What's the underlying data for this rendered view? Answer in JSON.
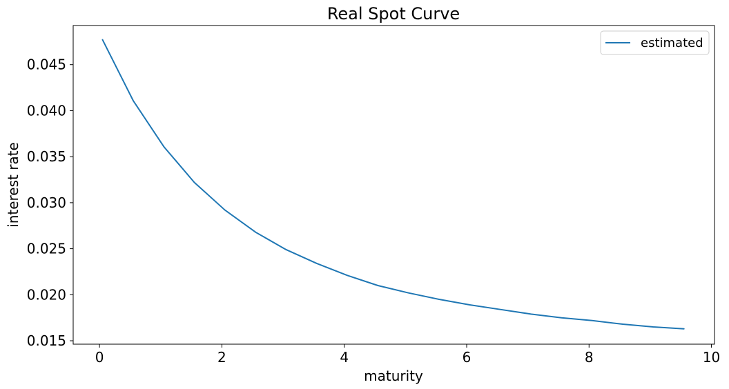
{
  "chart_data": {
    "type": "line",
    "title": "Real Spot Curve",
    "xlabel": "maturity",
    "ylabel": "interest rate",
    "xlim": [
      -0.43,
      10.05
    ],
    "ylim": [
      0.01463,
      0.04925
    ],
    "x_ticks": [
      0,
      2,
      4,
      6,
      8,
      10
    ],
    "x_tick_labels": [
      "0",
      "2",
      "4",
      "6",
      "8",
      "10"
    ],
    "y_ticks": [
      0.015,
      0.02,
      0.025,
      0.03,
      0.035,
      0.04,
      0.045
    ],
    "y_tick_labels": [
      "0.015",
      "0.020",
      "0.025",
      "0.030",
      "0.035",
      "0.040",
      "0.045"
    ],
    "grid": false,
    "legend_position": "top-right",
    "series": [
      {
        "name": "estimated",
        "color": "#1f77b4",
        "x": [
          0.05,
          0.55,
          1.05,
          1.55,
          2.05,
          2.55,
          3.05,
          3.55,
          4.05,
          4.55,
          5.05,
          5.55,
          6.05,
          6.55,
          7.05,
          7.55,
          8.05,
          8.55,
          9.05,
          9.55
        ],
        "y": [
          0.0477,
          0.0411,
          0.0361,
          0.0322,
          0.0292,
          0.0268,
          0.0249,
          0.0234,
          0.0221,
          0.021,
          0.0202,
          0.0195,
          0.0189,
          0.0184,
          0.0179,
          0.0175,
          0.0172,
          0.0168,
          0.0165,
          0.0163
        ]
      }
    ]
  }
}
